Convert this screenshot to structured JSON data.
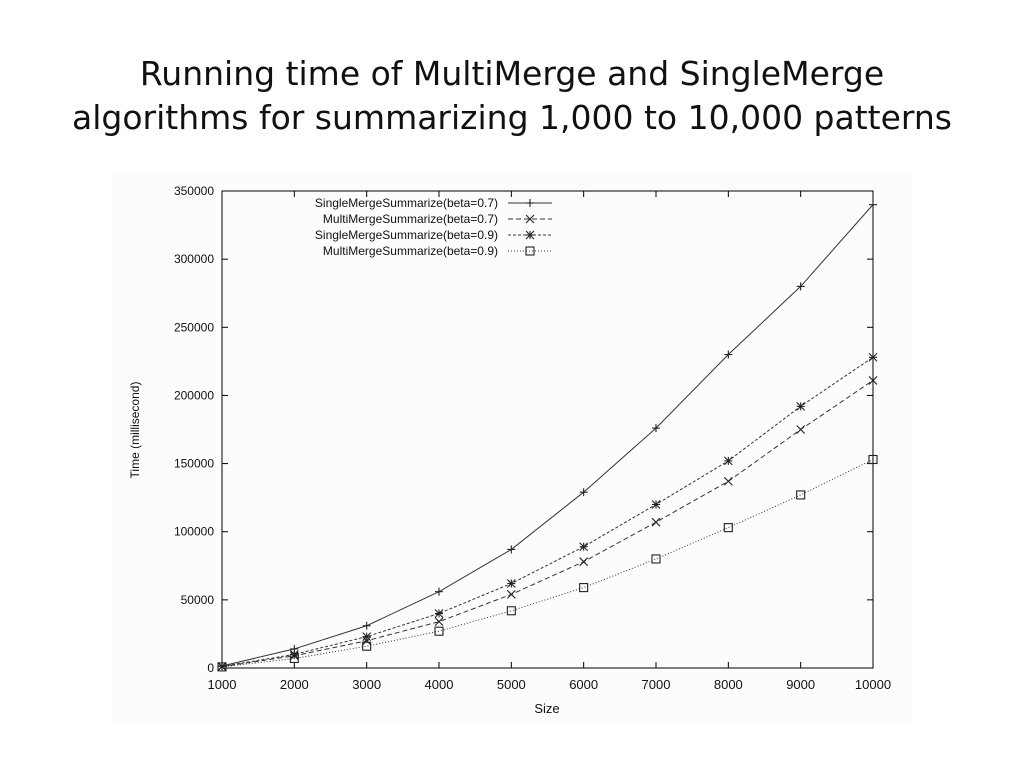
{
  "slide": {
    "title_line1": "Running time of MultiMerge and SingleMerge",
    "title_line2": "algorithms for summarizing 1,000 to 10,000 patterns"
  },
  "chart_data": {
    "type": "line",
    "xlabel": "Size",
    "ylabel": "Time (millisecond)",
    "xlim": [
      1000,
      10000
    ],
    "ylim": [
      0,
      350000
    ],
    "x": [
      1000,
      2000,
      3000,
      4000,
      5000,
      6000,
      7000,
      8000,
      9000,
      10000
    ],
    "xticks": [
      "1000",
      "2000",
      "3000",
      "4000",
      "5000",
      "6000",
      "7000",
      "8000",
      "9000",
      "10000"
    ],
    "yticks": [
      "0",
      "50000",
      "100000",
      "150000",
      "200000",
      "250000",
      "300000",
      "350000"
    ],
    "grid": false,
    "legend_position": "top-left",
    "series": [
      {
        "name": "SingleMergeSummarize(beta=0.7)",
        "marker": "plus",
        "dash": "none",
        "values": [
          1500,
          14000,
          31000,
          56000,
          87000,
          129000,
          176000,
          230000,
          280000,
          340000
        ]
      },
      {
        "name": "MultiMergeSummarize(beta=0.7)",
        "marker": "cross",
        "dash": "5,3",
        "values": [
          1000,
          9000,
          20000,
          34000,
          54000,
          78000,
          107000,
          137000,
          175000,
          211000
        ]
      },
      {
        "name": "SingleMergeSummarize(beta=0.9)",
        "marker": "star",
        "dash": "3,2",
        "values": [
          1200,
          10000,
          23000,
          40000,
          62000,
          89000,
          120000,
          152000,
          192000,
          228000
        ]
      },
      {
        "name": "MultiMergeSummarize(beta=0.9)",
        "marker": "square",
        "dash": "1,2",
        "values": [
          800,
          7000,
          16000,
          27000,
          42000,
          59000,
          80000,
          103000,
          127000,
          153000
        ]
      }
    ]
  }
}
